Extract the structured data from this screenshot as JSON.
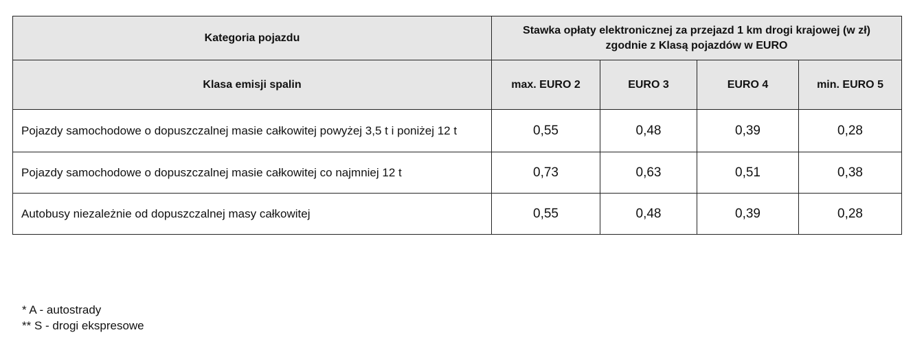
{
  "table": {
    "header_category": "Kategoria pojazdu",
    "header_rate": "Stawka opłaty elektronicznej za przejazd 1 km drogi krajowej (w zł) zgodnie z Klasą pojazdów w EURO",
    "header_emission": "Klasa emisji spalin",
    "euro_classes": [
      "max. EURO 2",
      "EURO 3",
      "EURO 4",
      "min. EURO 5"
    ],
    "rows": [
      {
        "label": "Pojazdy samochodowe o dopuszczalnej masie całkowitej powyżej 3,5 t i poniżej 12 t",
        "values": [
          "0,55",
          "0,48",
          "0,39",
          "0,28"
        ]
      },
      {
        "label": "Pojazdy samochodowe o dopuszczalnej masie całkowitej co najmniej 12 t",
        "values": [
          "0,73",
          "0,63",
          "0,51",
          "0,38"
        ]
      },
      {
        "label": "Autobusy niezależnie od dopuszczalnej masy całkowitej",
        "values": [
          "0,55",
          "0,48",
          "0,39",
          "0,28"
        ]
      }
    ]
  },
  "footnotes": [
    "* A - autostrady",
    "** S - drogi ekspresowe"
  ]
}
